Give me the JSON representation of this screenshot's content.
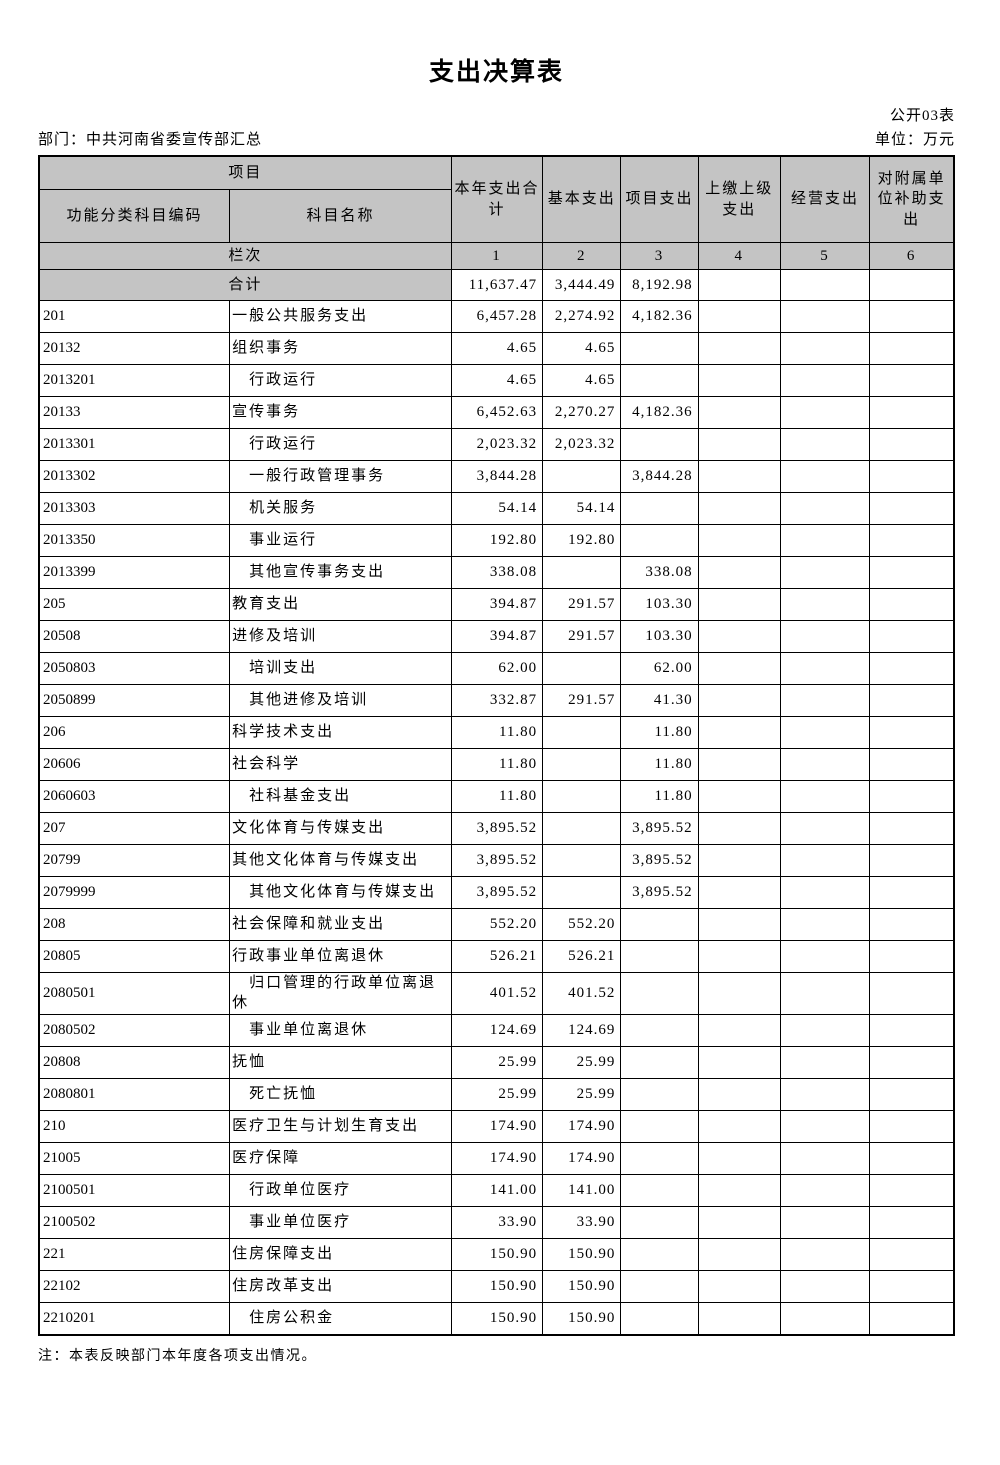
{
  "meta": {
    "title": "支出决算表",
    "form_code": "公开03表",
    "department": "部门：中共河南省委宣传部汇总",
    "unit": "单位：万元",
    "note": "注：本表反映部门本年度各项支出情况。"
  },
  "colors": {
    "header_bg": "#c4c4c4",
    "border": "#000000"
  },
  "table": {
    "header": {
      "project_group": "项目",
      "code_col": "功能分类科目编码",
      "name_col": "科目名称",
      "value_cols": [
        "本年支出合计",
        "基本支出",
        "项目支出",
        "上缴上级支出",
        "经营支出",
        "对附属单位补助支出"
      ],
      "rank_label": "栏次",
      "rank_numbers": [
        "1",
        "2",
        "3",
        "4",
        "5",
        "6"
      ]
    },
    "total_row": {
      "label": "合计",
      "values": [
        "11,637.47",
        "3,444.49",
        "8,192.98",
        "",
        "",
        ""
      ]
    },
    "rows": [
      {
        "code": "201",
        "name": "一般公共服务支出",
        "indent": 0,
        "values": [
          "6,457.28",
          "2,274.92",
          "4,182.36",
          "",
          "",
          ""
        ]
      },
      {
        "code": "20132",
        "name": "组织事务",
        "indent": 0,
        "values": [
          "4.65",
          "4.65",
          "",
          "",
          "",
          ""
        ]
      },
      {
        "code": "2013201",
        "name": "行政运行",
        "indent": 1,
        "values": [
          "4.65",
          "4.65",
          "",
          "",
          "",
          ""
        ]
      },
      {
        "code": "20133",
        "name": "宣传事务",
        "indent": 0,
        "values": [
          "6,452.63",
          "2,270.27",
          "4,182.36",
          "",
          "",
          ""
        ]
      },
      {
        "code": "2013301",
        "name": "行政运行",
        "indent": 1,
        "values": [
          "2,023.32",
          "2,023.32",
          "",
          "",
          "",
          ""
        ]
      },
      {
        "code": "2013302",
        "name": "一般行政管理事务",
        "indent": 1,
        "values": [
          "3,844.28",
          "",
          "3,844.28",
          "",
          "",
          ""
        ]
      },
      {
        "code": "2013303",
        "name": "机关服务",
        "indent": 1,
        "values": [
          "54.14",
          "54.14",
          "",
          "",
          "",
          ""
        ]
      },
      {
        "code": "2013350",
        "name": "事业运行",
        "indent": 1,
        "values": [
          "192.80",
          "192.80",
          "",
          "",
          "",
          ""
        ]
      },
      {
        "code": "2013399",
        "name": "其他宣传事务支出",
        "indent": 1,
        "values": [
          "338.08",
          "",
          "338.08",
          "",
          "",
          ""
        ]
      },
      {
        "code": "205",
        "name": "教育支出",
        "indent": 0,
        "values": [
          "394.87",
          "291.57",
          "103.30",
          "",
          "",
          ""
        ]
      },
      {
        "code": "20508",
        "name": "进修及培训",
        "indent": 0,
        "values": [
          "394.87",
          "291.57",
          "103.30",
          "",
          "",
          ""
        ]
      },
      {
        "code": "2050803",
        "name": "培训支出",
        "indent": 1,
        "values": [
          "62.00",
          "",
          "62.00",
          "",
          "",
          ""
        ]
      },
      {
        "code": "2050899",
        "name": "其他进修及培训",
        "indent": 1,
        "values": [
          "332.87",
          "291.57",
          "41.30",
          "",
          "",
          ""
        ]
      },
      {
        "code": "206",
        "name": "科学技术支出",
        "indent": 0,
        "values": [
          "11.80",
          "",
          "11.80",
          "",
          "",
          ""
        ]
      },
      {
        "code": "20606",
        "name": "社会科学",
        "indent": 0,
        "values": [
          "11.80",
          "",
          "11.80",
          "",
          "",
          ""
        ]
      },
      {
        "code": "2060603",
        "name": "社科基金支出",
        "indent": 1,
        "values": [
          "11.80",
          "",
          "11.80",
          "",
          "",
          ""
        ]
      },
      {
        "code": "207",
        "name": "文化体育与传媒支出",
        "indent": 0,
        "values": [
          "3,895.52",
          "",
          "3,895.52",
          "",
          "",
          ""
        ]
      },
      {
        "code": "20799",
        "name": "其他文化体育与传媒支出",
        "indent": 0,
        "values": [
          "3,895.52",
          "",
          "3,895.52",
          "",
          "",
          ""
        ]
      },
      {
        "code": "2079999",
        "name": "其他文化体育与传媒支出",
        "indent": 1,
        "values": [
          "3,895.52",
          "",
          "3,895.52",
          "",
          "",
          ""
        ]
      },
      {
        "code": "208",
        "name": "社会保障和就业支出",
        "indent": 0,
        "values": [
          "552.20",
          "552.20",
          "",
          "",
          "",
          ""
        ]
      },
      {
        "code": "20805",
        "name": "行政事业单位离退休",
        "indent": 0,
        "values": [
          "526.21",
          "526.21",
          "",
          "",
          "",
          ""
        ]
      },
      {
        "code": "2080501",
        "name": "归口管理的行政单位离退休",
        "indent": 1,
        "values": [
          "401.52",
          "401.52",
          "",
          "",
          "",
          ""
        ]
      },
      {
        "code": "2080502",
        "name": "事业单位离退休",
        "indent": 1,
        "values": [
          "124.69",
          "124.69",
          "",
          "",
          "",
          ""
        ]
      },
      {
        "code": "20808",
        "name": "抚恤",
        "indent": 0,
        "values": [
          "25.99",
          "25.99",
          "",
          "",
          "",
          ""
        ]
      },
      {
        "code": "2080801",
        "name": "死亡抚恤",
        "indent": 1,
        "values": [
          "25.99",
          "25.99",
          "",
          "",
          "",
          ""
        ]
      },
      {
        "code": "210",
        "name": "医疗卫生与计划生育支出",
        "indent": 0,
        "values": [
          "174.90",
          "174.90",
          "",
          "",
          "",
          ""
        ]
      },
      {
        "code": "21005",
        "name": "医疗保障",
        "indent": 0,
        "values": [
          "174.90",
          "174.90",
          "",
          "",
          "",
          ""
        ]
      },
      {
        "code": "2100501",
        "name": "行政单位医疗",
        "indent": 1,
        "values": [
          "141.00",
          "141.00",
          "",
          "",
          "",
          ""
        ]
      },
      {
        "code": "2100502",
        "name": "事业单位医疗",
        "indent": 1,
        "values": [
          "33.90",
          "33.90",
          "",
          "",
          "",
          ""
        ]
      },
      {
        "code": "221",
        "name": "住房保障支出",
        "indent": 0,
        "values": [
          "150.90",
          "150.90",
          "",
          "",
          "",
          ""
        ]
      },
      {
        "code": "22102",
        "name": "住房改革支出",
        "indent": 0,
        "values": [
          "150.90",
          "150.90",
          "",
          "",
          "",
          ""
        ]
      },
      {
        "code": "2210201",
        "name": "住房公积金",
        "indent": 1,
        "values": [
          "150.90",
          "150.90",
          "",
          "",
          "",
          ""
        ]
      }
    ]
  }
}
